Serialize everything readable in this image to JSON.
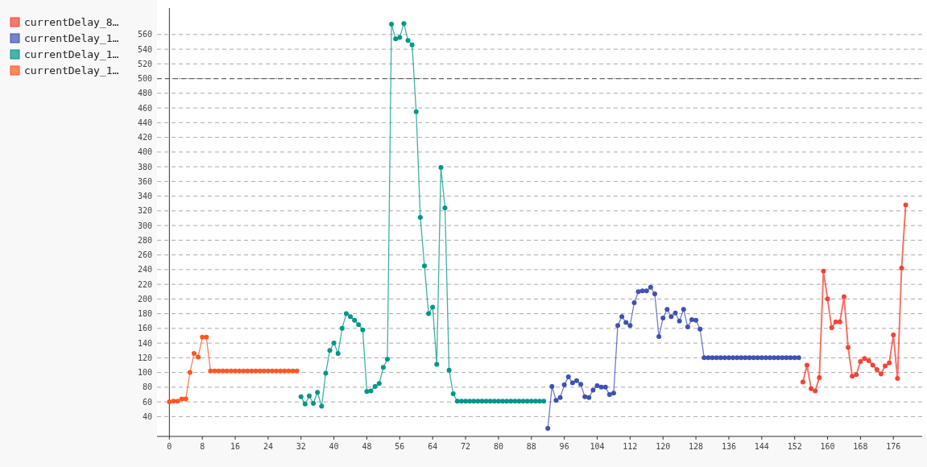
{
  "chart_data": {
    "type": "line",
    "xlim": [
      -3,
      183
    ],
    "xticks": [
      0,
      8,
      16,
      24,
      32,
      40,
      48,
      56,
      64,
      72,
      80,
      88,
      96,
      104,
      112,
      120,
      128,
      136,
      144,
      152,
      160,
      168,
      176
    ],
    "ylim": [
      13,
      596
    ],
    "yticks": [
      40,
      60,
      80,
      100,
      120,
      140,
      160,
      180,
      200,
      220,
      240,
      260,
      280,
      300,
      320,
      340,
      360,
      380,
      400,
      420,
      440,
      460,
      480,
      500,
      520,
      540,
      560
    ],
    "grid": "y",
    "legend": "left",
    "marker": "circle",
    "line_style": "solid",
    "ref_lines": [
      {
        "axis": "y",
        "value": 500,
        "color": "#666666",
        "line_style": "dashed"
      }
    ],
    "series": [
      {
        "name": "currentDelay_8…",
        "color": "#f44336",
        "x": [
          154,
          155,
          156,
          157,
          158,
          159,
          160,
          161,
          162,
          163,
          164,
          165,
          166,
          167,
          168,
          169,
          170,
          171,
          172,
          173,
          174,
          175,
          176,
          177,
          178,
          179
        ],
        "values": [
          87,
          110,
          78,
          75,
          93,
          238,
          200,
          161,
          169,
          169,
          203,
          134,
          95,
          97,
          115,
          119,
          116,
          110,
          104,
          98,
          109,
          113,
          151,
          92,
          242,
          328
        ]
      },
      {
        "name": "currentDelay_1…",
        "color": "#3f51b5",
        "x": [
          92,
          93,
          94,
          95,
          96,
          97,
          98,
          99,
          100,
          101,
          102,
          103,
          104,
          105,
          106,
          107,
          108,
          109,
          110,
          111,
          112,
          113,
          114,
          115,
          116,
          117,
          118,
          119,
          120,
          121,
          122,
          123,
          124,
          125,
          126,
          127,
          128,
          129,
          130,
          131,
          132,
          133,
          134,
          135,
          136,
          137,
          138,
          139,
          140,
          141,
          142,
          143,
          144,
          145,
          146,
          147,
          148,
          149,
          150,
          151,
          152,
          153
        ],
        "values": [
          24,
          81,
          62,
          66,
          83,
          94,
          86,
          89,
          84,
          67,
          66,
          76,
          82,
          80,
          80,
          70,
          72,
          164,
          176,
          168,
          164,
          195,
          210,
          211,
          211,
          216,
          207,
          149,
          174,
          186,
          176,
          181,
          170,
          186,
          162,
          172,
          171,
          159,
          120,
          120,
          120,
          120,
          120,
          120,
          120,
          120,
          120,
          120,
          120,
          120,
          120,
          120,
          120,
          120,
          120,
          120,
          120,
          120,
          120,
          120,
          120,
          120
        ]
      },
      {
        "name": "currentDelay_1…",
        "color": "#009688",
        "x": [
          32,
          33,
          34,
          35,
          36,
          37,
          38,
          39,
          40,
          41,
          42,
          43,
          44,
          45,
          46,
          47,
          48,
          49,
          50,
          51,
          52,
          53,
          54,
          55,
          56,
          57,
          58,
          59,
          60,
          61,
          62,
          63,
          64,
          65,
          66,
          67,
          68,
          69,
          70,
          71,
          72,
          73,
          74,
          75,
          76,
          77,
          78,
          79,
          80,
          81,
          82,
          83,
          84,
          85,
          86,
          87,
          88,
          89,
          90,
          91
        ],
        "values": [
          67,
          57,
          68,
          58,
          73,
          54,
          99,
          130,
          140,
          126,
          160,
          180,
          176,
          171,
          165,
          158,
          74,
          75,
          81,
          85,
          107,
          118,
          574,
          554,
          556,
          575,
          552,
          546,
          455,
          311,
          245,
          180,
          189,
          111,
          379,
          324,
          103,
          71,
          61,
          61,
          61,
          61,
          61,
          61,
          61,
          61,
          61,
          61,
          61,
          61,
          61,
          61,
          61,
          61,
          61,
          61,
          61,
          61,
          61,
          61
        ]
      },
      {
        "name": "currentDelay_1…",
        "color": "#ff5722",
        "x": [
          0,
          1,
          2,
          3,
          4,
          5,
          6,
          7,
          8,
          9,
          10,
          11,
          12,
          13,
          14,
          15,
          16,
          17,
          18,
          19,
          20,
          21,
          22,
          23,
          24,
          25,
          26,
          27,
          28,
          29,
          30,
          31
        ],
        "values": [
          60,
          61,
          61,
          64,
          64,
          100,
          126,
          121,
          148,
          148,
          102,
          102,
          102,
          102,
          102,
          102,
          102,
          102,
          102,
          102,
          102,
          102,
          102,
          102,
          102,
          102,
          102,
          102,
          102,
          102,
          102,
          102
        ]
      }
    ]
  }
}
